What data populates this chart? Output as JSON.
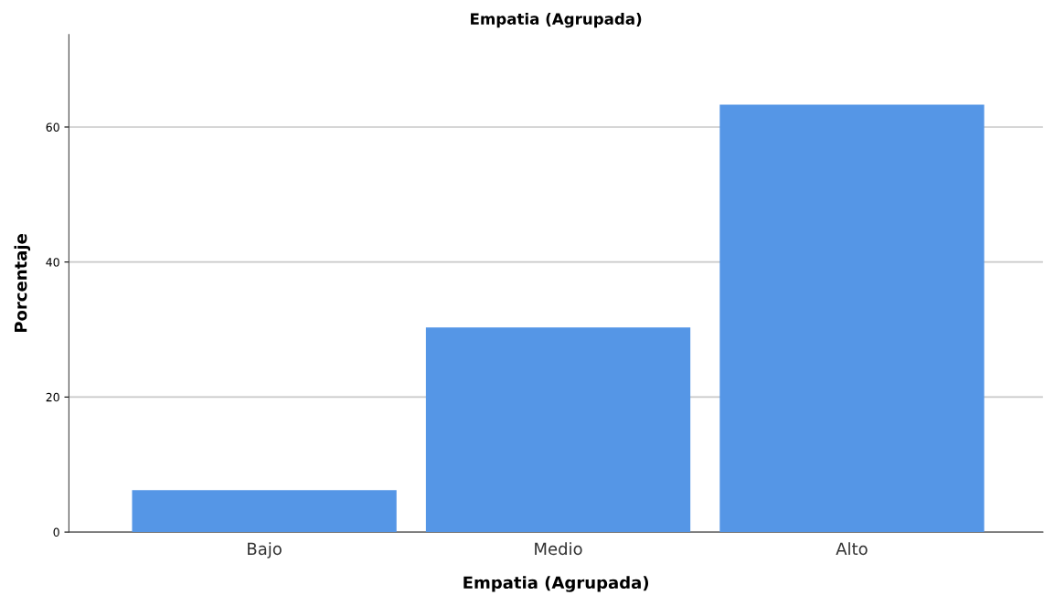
{
  "chart_data": {
    "type": "bar",
    "title": "Empatia (Agrupada)",
    "xlabel": "Empatia (Agrupada)",
    "ylabel": "Porcentaje",
    "categories": [
      "Bajo",
      "Medio",
      "Alto"
    ],
    "values": [
      6.2,
      30.3,
      63.3
    ],
    "color": "#5596e6",
    "ylim": [
      0,
      73.7
    ],
    "yticks": [
      0,
      20,
      40,
      60
    ],
    "grid": "y"
  }
}
